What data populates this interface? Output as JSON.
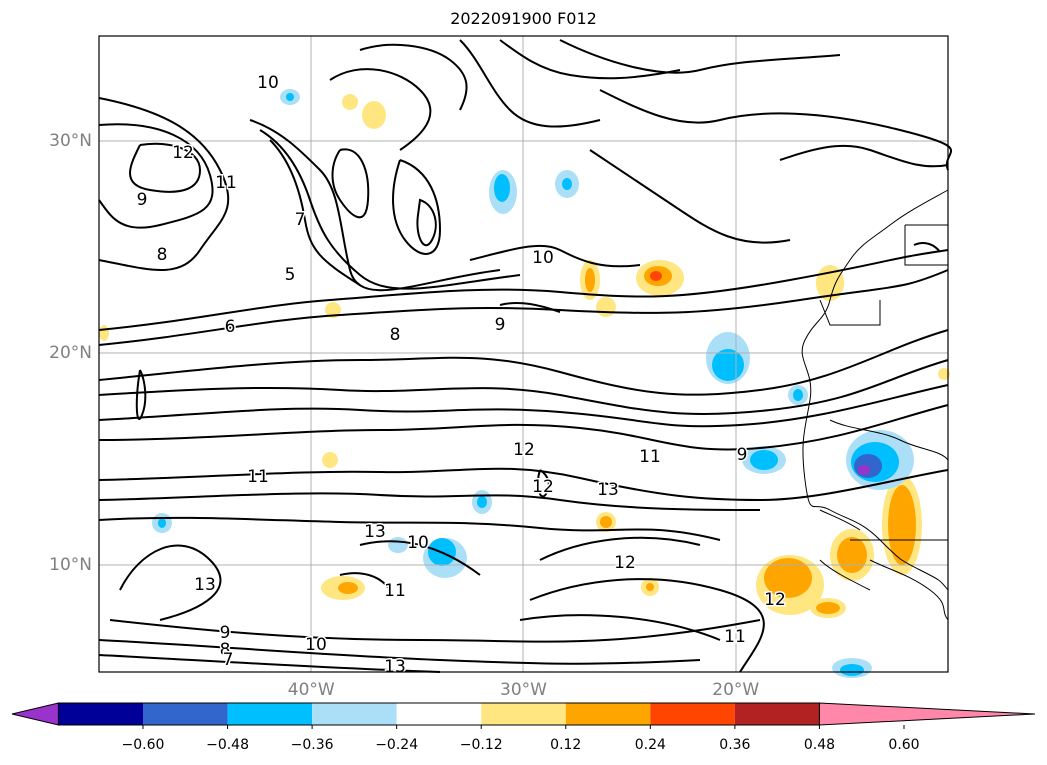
{
  "title": "2022091900 F012",
  "map": {
    "lat_ticks": [
      {
        "label": "30°N",
        "lat": 30
      },
      {
        "label": "20°N",
        "lat": 20
      },
      {
        "label": "10°N",
        "lat": 10
      }
    ],
    "lon_ticks": [
      {
        "label": "40°W",
        "lon": -40
      },
      {
        "label": "30°W",
        "lon": -30
      },
      {
        "label": "20°W",
        "lon": -20
      }
    ],
    "extent": {
      "lon_min": -50,
      "lon_max": -10,
      "lat_min": 5,
      "lat_max": 35
    },
    "gridlines": true,
    "contour_labels": [
      "10",
      "12",
      "11",
      "9",
      "8",
      "7",
      "6",
      "5",
      "13",
      "10",
      "11",
      "12",
      "13",
      "12",
      "11",
      "10",
      "9",
      "8",
      "7",
      "8",
      "9",
      "10",
      "11",
      "9",
      "12",
      "13",
      "13",
      "12",
      "11"
    ]
  },
  "colorbar": {
    "orientation": "horizontal",
    "extend": "both",
    "tick_labels": [
      "−0.60",
      "−0.48",
      "−0.36",
      "−0.24",
      "−0.12",
      "0.12",
      "0.24",
      "0.36",
      "0.48",
      "0.60"
    ],
    "colors": [
      "#9933cc",
      "#000099",
      "#3366cc",
      "#00bfff",
      "#aadff7",
      "#ffffff",
      "#ffe680",
      "#ffa500",
      "#ff4500",
      "#b22222",
      "#ff88aa"
    ]
  }
}
